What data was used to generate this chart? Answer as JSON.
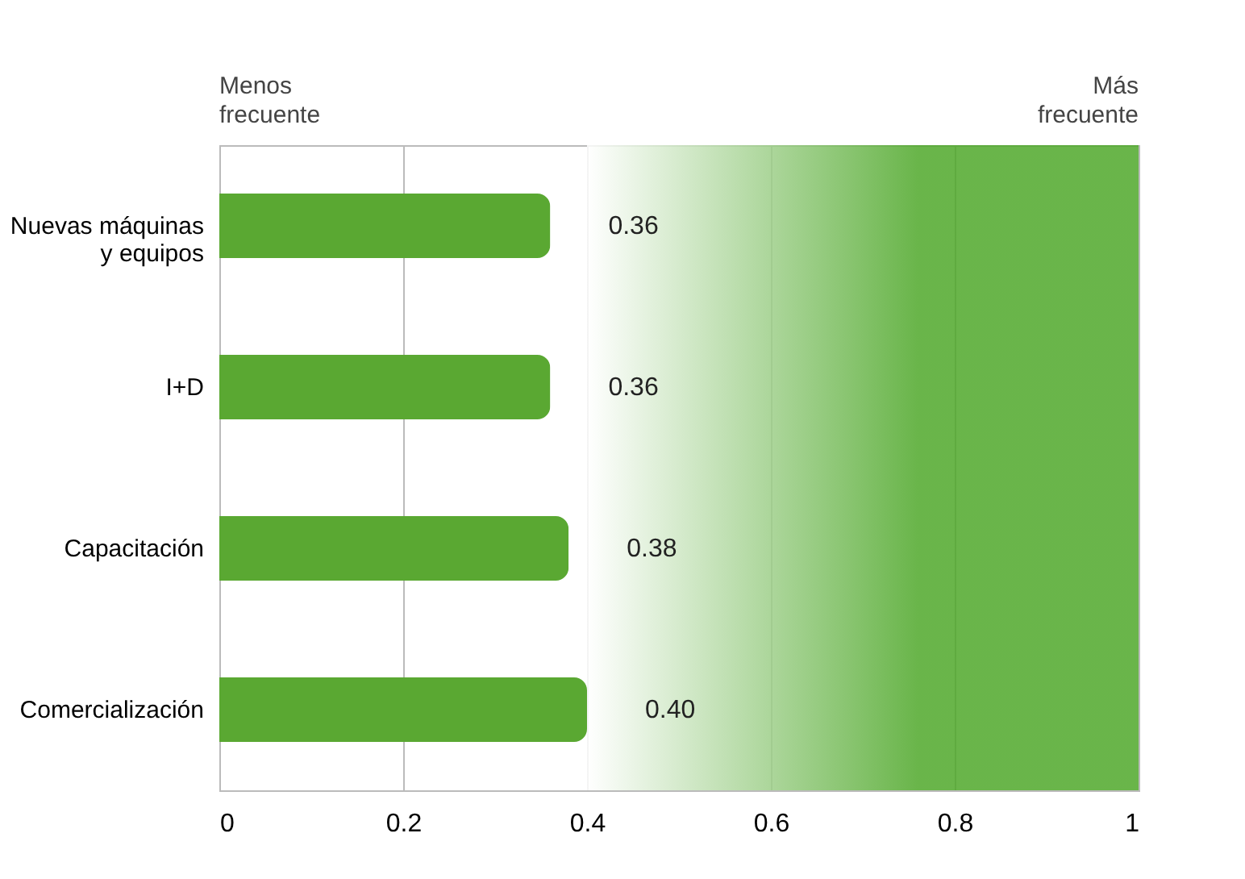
{
  "chart_data": {
    "type": "bar",
    "orientation": "horizontal",
    "categories": [
      "Nuevas máquinas y equipos",
      "I+D",
      "Capacitación",
      "Comercialización"
    ],
    "values": [
      0.36,
      0.36,
      0.38,
      0.4
    ],
    "value_labels": [
      "0.36",
      "0.36",
      "0.38",
      "0.40"
    ],
    "color": "#5aa832",
    "xlim": [
      0,
      1
    ],
    "xticks": [
      0,
      0.2,
      0.4,
      0.6,
      0.8,
      1
    ],
    "grid": "x",
    "bands": [
      {
        "axis": "x",
        "from": 0.4,
        "to": 1,
        "color": "#4fa82a"
      }
    ],
    "annotations": [
      "Menos frecuente",
      "Más frecuente"
    ]
  }
}
